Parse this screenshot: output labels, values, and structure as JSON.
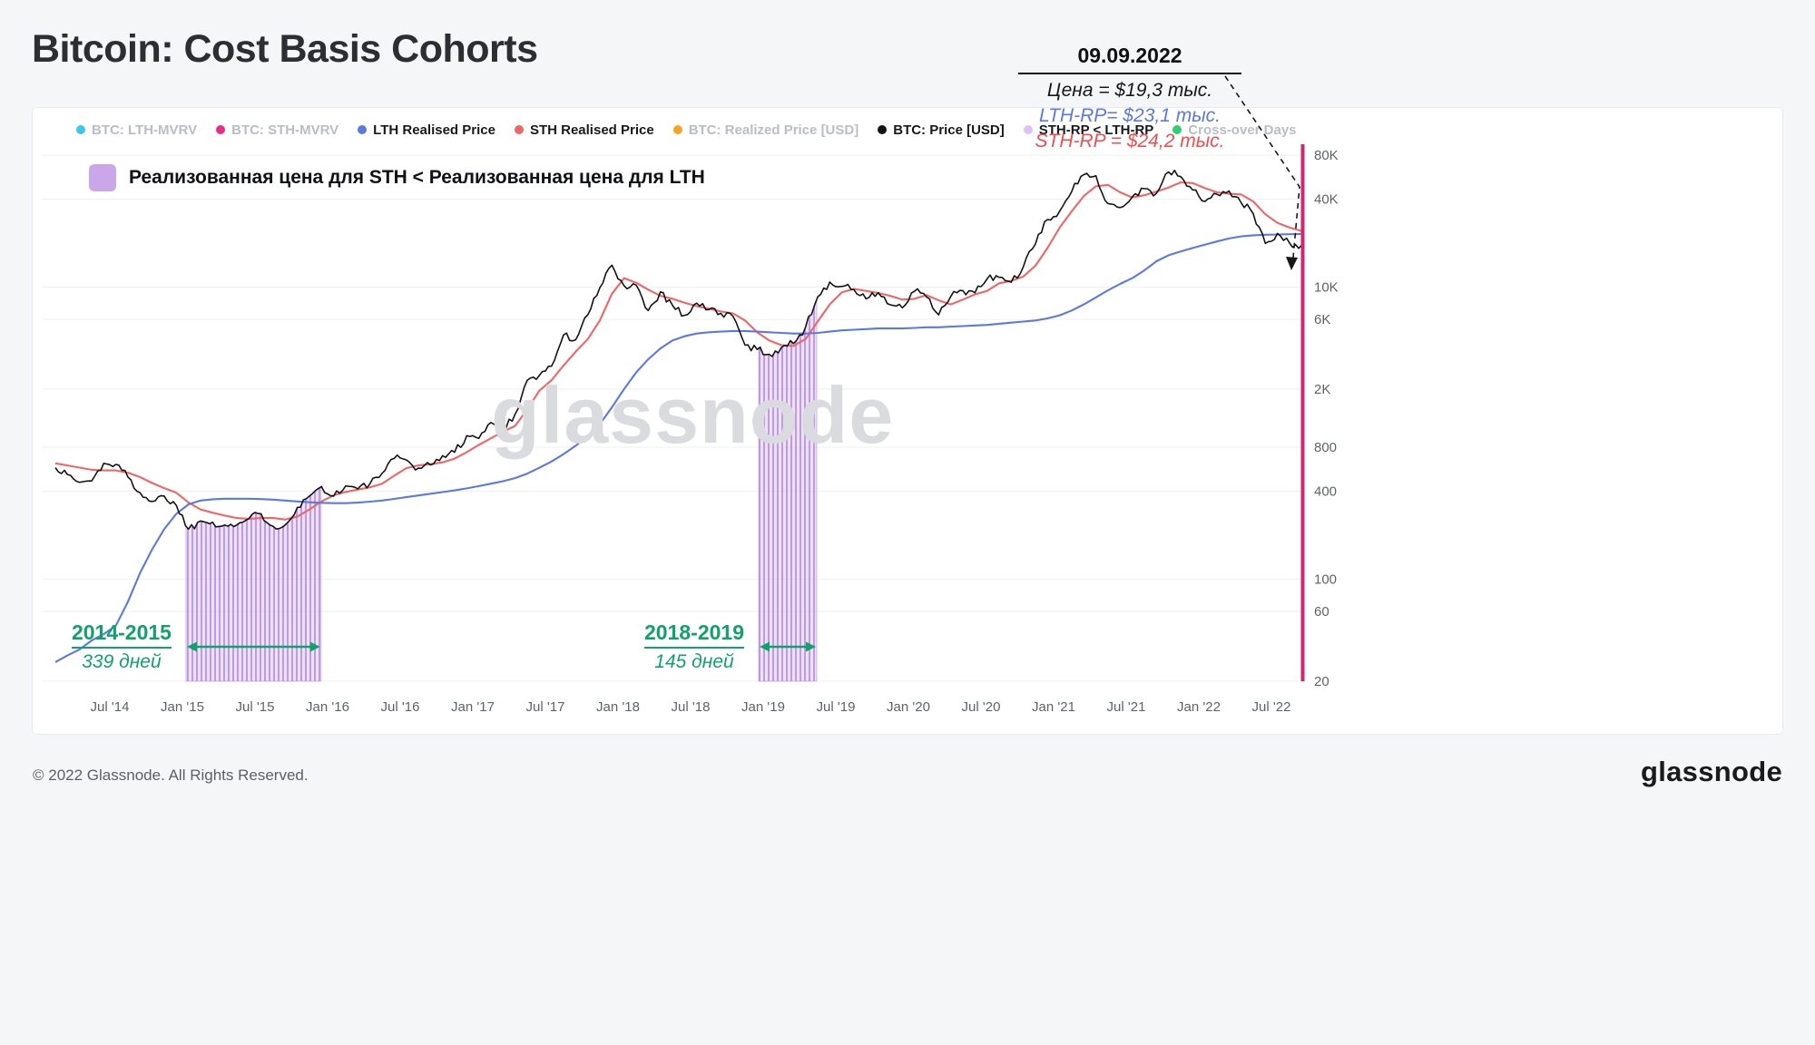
{
  "page": {
    "title": "Bitcoin: Cost Basis Cohorts",
    "watermark": "glassnode",
    "footer_left": "© 2022 Glassnode. All Rights Reserved.",
    "footer_logo": "glassnode"
  },
  "annotation": {
    "date": "09.09.2022",
    "price_line": "Цена = $19,3 тыс.",
    "lth_line": "LTH-RP= $23,1 тыс.",
    "sth_line": "STH-RP = $24,2 тыс.",
    "colors": {
      "price": "#15171a",
      "lth": "#5b79e0",
      "sth": "#ee4f4f"
    }
  },
  "chip": {
    "label": "Реализованная цена для STH < Реализованная цена для LTH",
    "color": "#c9a7e8"
  },
  "legend": [
    {
      "label": "BTC: LTH-MVRV",
      "color": "#3cc8e8",
      "dimmed": true
    },
    {
      "label": "BTC: STH-MVRV",
      "color": "#e62e8a",
      "dimmed": true
    },
    {
      "label": "LTH Realised Price",
      "color": "#5b79e0",
      "dimmed": false
    },
    {
      "label": "STH Realised Price",
      "color": "#ef6666",
      "dimmed": false
    },
    {
      "label": "BTC: Realized Price [USD]",
      "color": "#f7a325",
      "dimmed": true
    },
    {
      "label": "BTC: Price [USD]",
      "color": "#141414",
      "dimmed": false
    },
    {
      "label": "STH-RP < LTH-RP",
      "color": "#d9c4f2",
      "dimmed": false
    },
    {
      "label": "Cross-over Days",
      "color": "#2fce73",
      "dimmed": true
    }
  ],
  "chart_data": {
    "type": "line",
    "title": "Bitcoin: Cost Basis Cohorts",
    "y_scale": "log",
    "ylim": [
      20,
      80000
    ],
    "grid": true,
    "legend_position": "top",
    "accent_axis_color": "#d6246e",
    "region_color": "#c9a7e8",
    "green": "#11a169",
    "y_ticks": [
      {
        "v": 80000,
        "label": "80K"
      },
      {
        "v": 40000,
        "label": "40K"
      },
      {
        "v": 10000,
        "label": "10K"
      },
      {
        "v": 6000,
        "label": "6K"
      },
      {
        "v": 2000,
        "label": "2K"
      },
      {
        "v": 800,
        "label": "800"
      },
      {
        "v": 400,
        "label": "400"
      },
      {
        "v": 100,
        "label": "100"
      },
      {
        "v": 60,
        "label": "60"
      },
      {
        "v": 20,
        "label": "20"
      }
    ],
    "x_ticks": [
      "Jul '14",
      "Jan '15",
      "Jul '15",
      "Jan '16",
      "Jul '16",
      "Jan '17",
      "Jul '17",
      "Jan '18",
      "Jul '18",
      "Jan '19",
      "Jul '19",
      "Jan '20",
      "Jul '20",
      "Jan '21",
      "Jul '21",
      "Jan '22",
      "Jul '22"
    ],
    "months": [
      "2014-02",
      "2014-03",
      "2014-04",
      "2014-05",
      "2014-06",
      "2014-07",
      "2014-08",
      "2014-09",
      "2014-10",
      "2014-11",
      "2014-12",
      "2015-01",
      "2015-02",
      "2015-03",
      "2015-04",
      "2015-05",
      "2015-06",
      "2015-07",
      "2015-08",
      "2015-09",
      "2015-10",
      "2015-11",
      "2015-12",
      "2016-01",
      "2016-02",
      "2016-03",
      "2016-04",
      "2016-05",
      "2016-06",
      "2016-07",
      "2016-08",
      "2016-09",
      "2016-10",
      "2016-11",
      "2016-12",
      "2017-01",
      "2017-02",
      "2017-03",
      "2017-04",
      "2017-05",
      "2017-06",
      "2017-07",
      "2017-08",
      "2017-09",
      "2017-10",
      "2017-11",
      "2017-12",
      "2018-01",
      "2018-02",
      "2018-03",
      "2018-04",
      "2018-05",
      "2018-06",
      "2018-07",
      "2018-08",
      "2018-09",
      "2018-10",
      "2018-11",
      "2018-12",
      "2019-01",
      "2019-02",
      "2019-03",
      "2019-04",
      "2019-05",
      "2019-06",
      "2019-07",
      "2019-08",
      "2019-09",
      "2019-10",
      "2019-11",
      "2019-12",
      "2020-01",
      "2020-02",
      "2020-03",
      "2020-04",
      "2020-05",
      "2020-06",
      "2020-07",
      "2020-08",
      "2020-09",
      "2020-10",
      "2020-11",
      "2020-12",
      "2021-01",
      "2021-02",
      "2021-03",
      "2021-04",
      "2021-05",
      "2021-06",
      "2021-07",
      "2021-08",
      "2021-09",
      "2021-10",
      "2021-11",
      "2021-12",
      "2022-01",
      "2022-02",
      "2022-03",
      "2022-04",
      "2022-05",
      "2022-06",
      "2022-07",
      "2022-08",
      "2022-09"
    ],
    "series": [
      {
        "name": "BTC: Price [USD]",
        "color": "#141414",
        "values": [
          580,
          520,
          460,
          470,
          620,
          610,
          500,
          390,
          340,
          370,
          320,
          220,
          250,
          245,
          235,
          235,
          260,
          280,
          230,
          235,
          310,
          370,
          430,
          370,
          435,
          415,
          450,
          530,
          670,
          655,
          575,
          605,
          700,
          740,
          960,
          920,
          1180,
          1080,
          1350,
          2300,
          2480,
          2870,
          4700,
          4350,
          6450,
          9900,
          14100,
          10200,
          10300,
          6900,
          9250,
          7500,
          6400,
          7750,
          7000,
          6600,
          6300,
          4000,
          3740,
          3460,
          3850,
          4100,
          5320,
          8550,
          10800,
          10100,
          9600,
          8300,
          9150,
          7550,
          7200,
          9350,
          8550,
          6450,
          8620,
          9450,
          9140,
          11350,
          11650,
          10780,
          13800,
          19700,
          29000,
          33100,
          45100,
          58800,
          57700,
          37300,
          35000,
          41500,
          47100,
          43800,
          61300,
          57000,
          46200,
          38500,
          43200,
          45500,
          37700,
          31800,
          19900,
          23300,
          20000,
          19300
        ]
      },
      {
        "name": "STH Realised Price",
        "color": "#ef6666",
        "values": [
          620,
          600,
          580,
          560,
          555,
          555,
          535,
          500,
          455,
          420,
          390,
          335,
          300,
          285,
          272,
          262,
          258,
          262,
          262,
          256,
          268,
          300,
          340,
          375,
          395,
          410,
          425,
          450,
          510,
          575,
          600,
          612,
          630,
          668,
          740,
          830,
          920,
          1020,
          1120,
          1450,
          1950,
          2300,
          2900,
          3600,
          4400,
          5900,
          9000,
          11500,
          10700,
          9600,
          8700,
          8300,
          7800,
          7400,
          7100,
          6800,
          6600,
          5900,
          4900,
          4300,
          4000,
          3950,
          4400,
          5800,
          7600,
          9200,
          9700,
          9400,
          9100,
          8700,
          8200,
          8300,
          8800,
          8100,
          7600,
          8200,
          8900,
          9400,
          10600,
          11000,
          11800,
          14000,
          18500,
          25500,
          33000,
          42000,
          49000,
          50000,
          44500,
          41000,
          42500,
          45000,
          48000,
          52000,
          51500,
          47500,
          44500,
          43500,
          43000,
          38500,
          31500,
          27500,
          25500,
          24200
        ]
      },
      {
        "name": "LTH Realised Price",
        "color": "#5b79e0",
        "values": [
          27,
          30,
          33,
          38,
          42,
          48,
          70,
          110,
          160,
          220,
          280,
          325,
          345,
          352,
          355,
          355,
          355,
          353,
          350,
          345,
          340,
          336,
          333,
          331,
          331,
          334,
          339,
          345,
          354,
          364,
          374,
          384,
          394,
          405,
          418,
          433,
          450,
          468,
          492,
          528,
          578,
          638,
          718,
          818,
          948,
          1150,
          1500,
          2000,
          2600,
          3200,
          3800,
          4300,
          4600,
          4800,
          4900,
          4950,
          5000,
          5000,
          4950,
          4900,
          4850,
          4800,
          4800,
          4850,
          4950,
          5050,
          5100,
          5150,
          5200,
          5200,
          5200,
          5250,
          5300,
          5300,
          5350,
          5400,
          5450,
          5500,
          5600,
          5700,
          5800,
          5900,
          6100,
          6400,
          6900,
          7600,
          8500,
          9500,
          10500,
          11500,
          13000,
          15000,
          16500,
          17500,
          18500,
          19500,
          20500,
          21500,
          22200,
          22600,
          22800,
          22900,
          23000,
          23100
        ]
      }
    ],
    "regions": [
      {
        "label": "2014-2015",
        "days_label": "339 дней",
        "start": "2015-01-10",
        "end": "2015-12-15"
      },
      {
        "label": "2018-2019",
        "days_label": "145 дней",
        "start": "2018-12-20",
        "end": "2019-05-14"
      }
    ]
  }
}
